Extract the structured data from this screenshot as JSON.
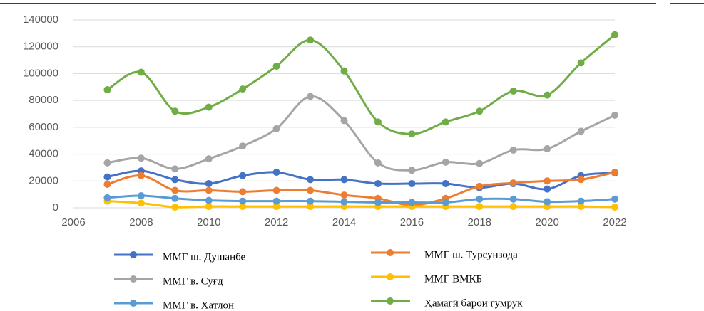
{
  "chart_data": {
    "type": "line",
    "x": [
      2007,
      2008,
      2009,
      2010,
      2011,
      2012,
      2013,
      2014,
      2015,
      2016,
      2017,
      2018,
      2019,
      2020,
      2021,
      2022
    ],
    "series": [
      {
        "name": "ММГ ш. Душанбе",
        "color": "#4472c4",
        "values": [
          23000,
          27500,
          21000,
          18000,
          24000,
          26500,
          21000,
          21000,
          18000,
          18000,
          18000,
          15000,
          18000,
          14000,
          24000,
          26000
        ]
      },
      {
        "name": "ММГ ш. Турсунзода",
        "color": "#ed7d31",
        "values": [
          17500,
          24000,
          13000,
          13000,
          12000,
          13000,
          13000,
          9500,
          7000,
          2000,
          7000,
          16000,
          18500,
          20000,
          21000,
          26500
        ]
      },
      {
        "name": "ММГ в. Суғд",
        "color": "#a5a5a5",
        "values": [
          33500,
          37000,
          29000,
          36500,
          46000,
          59000,
          83000,
          65000,
          33500,
          28000,
          34000,
          33000,
          43000,
          44000,
          57000,
          69000
        ]
      },
      {
        "name": "ММГ ВМКБ",
        "color": "#ffc000",
        "values": [
          5000,
          3500,
          500,
          1000,
          1000,
          1000,
          1000,
          1000,
          1000,
          1000,
          1000,
          1000,
          1000,
          1000,
          1000,
          500
        ]
      },
      {
        "name": "ММГ в. Хатлон",
        "color": "#5b9bd5",
        "values": [
          7500,
          9000,
          7000,
          5500,
          5000,
          5000,
          5000,
          4500,
          4000,
          4000,
          4000,
          6500,
          6500,
          4500,
          5000,
          6500
        ]
      },
      {
        "name": "Ҳамагӣ барои гумрук",
        "color": "#70ad47",
        "values": [
          88000,
          101000,
          72000,
          75000,
          88500,
          105500,
          125000,
          102000,
          64000,
          55000,
          64000,
          72000,
          87000,
          84000,
          108000,
          129000
        ]
      }
    ],
    "xlim": [
      2006,
      2022
    ],
    "xticks": [
      2006,
      2008,
      2010,
      2012,
      2014,
      2016,
      2018,
      2020,
      2022
    ],
    "ylim": [
      0,
      140000
    ],
    "yticks": [
      0,
      20000,
      40000,
      60000,
      80000,
      100000,
      120000,
      140000
    ],
    "grid": true
  }
}
